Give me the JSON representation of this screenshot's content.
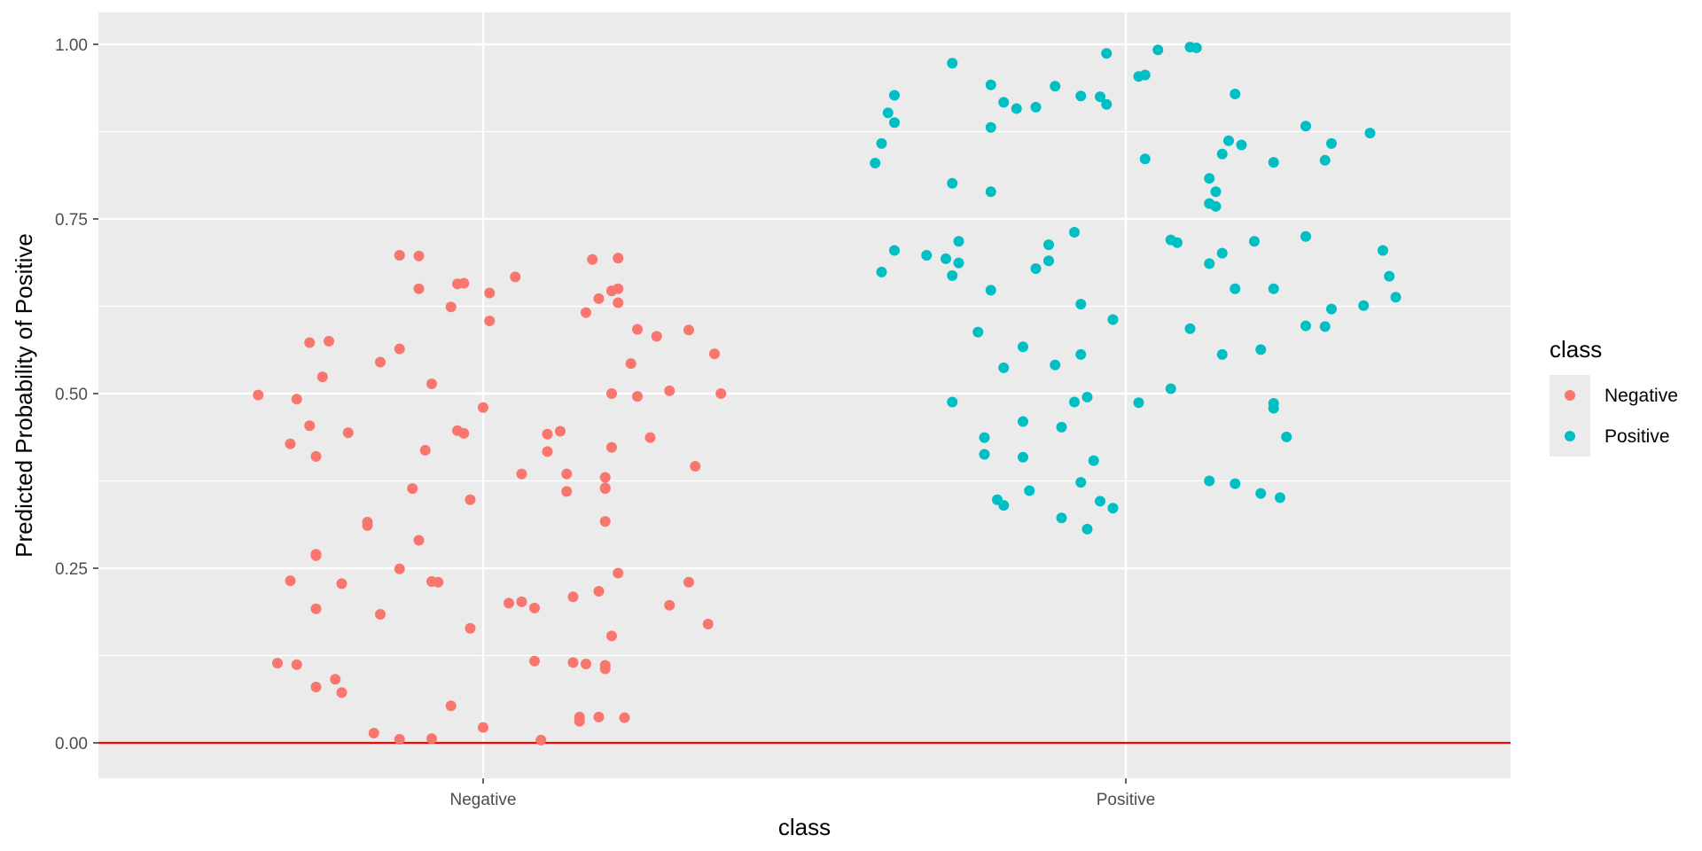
{
  "chart_data": {
    "type": "scatter",
    "title": "",
    "xlabel": "class",
    "ylabel": "Predicted Probability of Positive",
    "categories": [
      "Negative",
      "Positive"
    ],
    "y_ticks": [
      "0.00",
      "0.25",
      "0.50",
      "0.75",
      "1.00"
    ],
    "ylim": [
      -0.05,
      1.045
    ],
    "grid": true,
    "legend": {
      "title": "class",
      "position": "right"
    },
    "reference_line": {
      "y": 0.0,
      "color": "#ff0000"
    },
    "series": [
      {
        "name": "Negative",
        "color": "#f8766d",
        "x_category": "Negative",
        "points": [
          [
            -0.35,
            0.498
          ],
          [
            -0.3,
            0.428
          ],
          [
            -0.29,
            0.492
          ],
          [
            -0.27,
            0.573
          ],
          [
            -0.27,
            0.454
          ],
          [
            -0.26,
            0.41
          ],
          [
            -0.25,
            0.524
          ],
          [
            -0.24,
            0.575
          ],
          [
            -0.21,
            0.444
          ],
          [
            -0.16,
            0.545
          ],
          [
            -0.13,
            0.698
          ],
          [
            -0.13,
            0.564
          ],
          [
            -0.1,
            0.65
          ],
          [
            -0.1,
            0.697
          ],
          [
            -0.08,
            0.514
          ],
          [
            -0.05,
            0.624
          ],
          [
            -0.04,
            0.657
          ],
          [
            -0.03,
            0.658
          ],
          [
            -0.04,
            0.447
          ],
          [
            -0.03,
            0.443
          ],
          [
            0.0,
            0.48
          ],
          [
            0.01,
            0.604
          ],
          [
            0.01,
            0.644
          ],
          [
            0.05,
            0.667
          ],
          [
            0.17,
            0.692
          ],
          [
            0.21,
            0.694
          ],
          [
            0.18,
            0.636
          ],
          [
            0.2,
            0.647
          ],
          [
            0.21,
            0.65
          ],
          [
            0.21,
            0.63
          ],
          [
            0.16,
            0.616
          ],
          [
            0.24,
            0.592
          ],
          [
            0.27,
            0.582
          ],
          [
            0.23,
            0.543
          ],
          [
            0.32,
            0.591
          ],
          [
            0.36,
            0.557
          ],
          [
            0.2,
            0.5
          ],
          [
            0.24,
            0.496
          ],
          [
            0.29,
            0.504
          ],
          [
            0.37,
            0.5
          ],
          [
            0.26,
            0.437
          ],
          [
            0.33,
            0.396
          ],
          [
            0.2,
            0.423
          ],
          [
            0.12,
            0.446
          ],
          [
            0.1,
            0.442
          ],
          [
            0.1,
            0.417
          ],
          [
            0.13,
            0.385
          ],
          [
            0.06,
            0.385
          ],
          [
            0.19,
            0.38
          ],
          [
            0.19,
            0.365
          ],
          [
            0.19,
            0.364
          ],
          [
            0.13,
            0.36
          ],
          [
            0.19,
            0.317
          ],
          [
            -0.11,
            0.364
          ],
          [
            -0.09,
            0.419
          ],
          [
            -0.18,
            0.311
          ],
          [
            -0.18,
            0.316
          ],
          [
            -0.02,
            0.348
          ],
          [
            -0.1,
            0.29
          ],
          [
            -0.26,
            0.27
          ],
          [
            -0.26,
            0.268
          ],
          [
            -0.3,
            0.232
          ],
          [
            -0.22,
            0.228
          ],
          [
            -0.13,
            0.249
          ],
          [
            -0.08,
            0.231
          ],
          [
            -0.07,
            0.23
          ],
          [
            -0.26,
            0.192
          ],
          [
            -0.16,
            0.184
          ],
          [
            -0.02,
            0.164
          ],
          [
            0.04,
            0.2
          ],
          [
            0.06,
            0.202
          ],
          [
            0.08,
            0.193
          ],
          [
            0.14,
            0.209
          ],
          [
            0.18,
            0.217
          ],
          [
            0.21,
            0.243
          ],
          [
            0.29,
            0.197
          ],
          [
            0.32,
            0.23
          ],
          [
            0.35,
            0.17
          ],
          [
            -0.32,
            0.114
          ],
          [
            -0.29,
            0.112
          ],
          [
            -0.23,
            0.091
          ],
          [
            -0.26,
            0.08
          ],
          [
            -0.22,
            0.072
          ],
          [
            0.08,
            0.117
          ],
          [
            0.14,
            0.115
          ],
          [
            0.16,
            0.113
          ],
          [
            0.19,
            0.111
          ],
          [
            0.19,
            0.106
          ],
          [
            0.2,
            0.153
          ],
          [
            -0.05,
            0.053
          ],
          [
            -0.17,
            0.014
          ],
          [
            -0.13,
            0.005
          ],
          [
            -0.08,
            0.006
          ],
          [
            0.0,
            0.022
          ],
          [
            0.09,
            0.004
          ],
          [
            0.15,
            0.031
          ],
          [
            0.15,
            0.037
          ],
          [
            0.18,
            0.037
          ],
          [
            0.22,
            0.036
          ]
        ]
      },
      {
        "name": "Positive",
        "color": "#00bfc4",
        "x_category": "Positive",
        "points": [
          [
            -0.39,
            0.83
          ],
          [
            -0.38,
            0.858
          ],
          [
            -0.37,
            0.902
          ],
          [
            -0.36,
            0.888
          ],
          [
            -0.36,
            0.927
          ],
          [
            -0.27,
            0.973
          ],
          [
            -0.21,
            0.942
          ],
          [
            -0.19,
            0.917
          ],
          [
            -0.17,
            0.908
          ],
          [
            -0.14,
            0.91
          ],
          [
            -0.11,
            0.94
          ],
          [
            -0.07,
            0.926
          ],
          [
            -0.04,
            0.925
          ],
          [
            -0.03,
            0.987
          ],
          [
            -0.03,
            0.914
          ],
          [
            0.02,
            0.954
          ],
          [
            0.03,
            0.956
          ],
          [
            0.05,
            0.992
          ],
          [
            0.1,
            0.996
          ],
          [
            0.11,
            0.995
          ],
          [
            0.17,
            0.929
          ],
          [
            0.28,
            0.883
          ],
          [
            0.32,
            0.858
          ],
          [
            0.38,
            0.873
          ],
          [
            -0.21,
            0.881
          ],
          [
            -0.27,
            0.801
          ],
          [
            -0.21,
            0.789
          ],
          [
            0.03,
            0.836
          ],
          [
            0.15,
            0.843
          ],
          [
            0.16,
            0.862
          ],
          [
            0.18,
            0.856
          ],
          [
            0.23,
            0.831
          ],
          [
            0.31,
            0.834
          ],
          [
            0.13,
            0.808
          ],
          [
            0.14,
            0.789
          ],
          [
            0.13,
            0.772
          ],
          [
            0.14,
            0.768
          ],
          [
            -0.38,
            0.674
          ],
          [
            -0.36,
            0.705
          ],
          [
            -0.31,
            0.698
          ],
          [
            -0.28,
            0.693
          ],
          [
            -0.27,
            0.669
          ],
          [
            -0.26,
            0.718
          ],
          [
            -0.26,
            0.687
          ],
          [
            -0.21,
            0.648
          ],
          [
            -0.14,
            0.679
          ],
          [
            -0.12,
            0.713
          ],
          [
            -0.12,
            0.69
          ],
          [
            -0.08,
            0.731
          ],
          [
            -0.07,
            0.628
          ],
          [
            -0.02,
            0.606
          ],
          [
            0.07,
            0.72
          ],
          [
            0.08,
            0.716
          ],
          [
            0.13,
            0.686
          ],
          [
            0.15,
            0.701
          ],
          [
            0.2,
            0.718
          ],
          [
            0.17,
            0.65
          ],
          [
            0.23,
            0.65
          ],
          [
            0.28,
            0.725
          ],
          [
            0.4,
            0.705
          ],
          [
            0.41,
            0.668
          ],
          [
            0.42,
            0.638
          ],
          [
            0.28,
            0.597
          ],
          [
            0.31,
            0.596
          ],
          [
            0.32,
            0.621
          ],
          [
            0.37,
            0.626
          ],
          [
            0.1,
            0.593
          ],
          [
            0.15,
            0.556
          ],
          [
            0.21,
            0.563
          ],
          [
            -0.23,
            0.588
          ],
          [
            -0.16,
            0.567
          ],
          [
            -0.19,
            0.537
          ],
          [
            -0.11,
            0.541
          ],
          [
            -0.07,
            0.556
          ],
          [
            -0.27,
            0.488
          ],
          [
            -0.06,
            0.495
          ],
          [
            -0.08,
            0.488
          ],
          [
            0.02,
            0.487
          ],
          [
            0.07,
            0.507
          ],
          [
            0.23,
            0.486
          ],
          [
            0.23,
            0.479
          ],
          [
            0.25,
            0.438
          ],
          [
            -0.22,
            0.437
          ],
          [
            -0.22,
            0.413
          ],
          [
            -0.16,
            0.46
          ],
          [
            -0.16,
            0.409
          ],
          [
            -0.1,
            0.452
          ],
          [
            -0.05,
            0.404
          ],
          [
            -0.07,
            0.373
          ],
          [
            -0.15,
            0.361
          ],
          [
            -0.19,
            0.34
          ],
          [
            -0.2,
            0.348
          ],
          [
            -0.1,
            0.322
          ],
          [
            -0.06,
            0.306
          ],
          [
            -0.04,
            0.346
          ],
          [
            -0.02,
            0.336
          ],
          [
            0.13,
            0.375
          ],
          [
            0.17,
            0.371
          ],
          [
            0.21,
            0.357
          ],
          [
            0.24,
            0.351
          ]
        ]
      }
    ]
  }
}
